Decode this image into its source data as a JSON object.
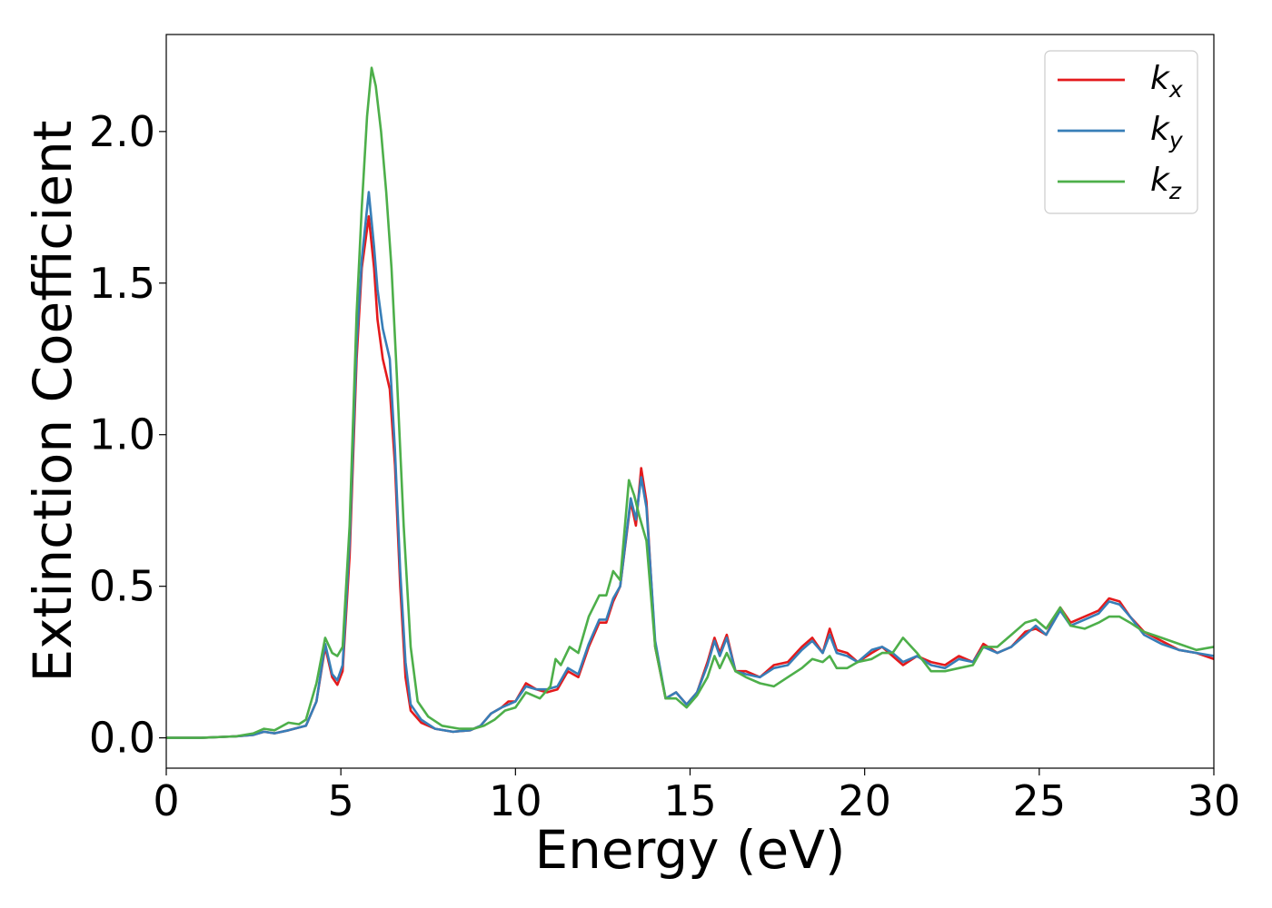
{
  "chart_data": {
    "type": "line",
    "title": "",
    "xlabel": "Energy (eV)",
    "ylabel": "Extinction Coefficient",
    "xlim": [
      0,
      30
    ],
    "ylim": [
      -0.1,
      2.32
    ],
    "xticks": [
      0,
      5,
      10,
      15,
      20,
      25,
      30
    ],
    "xtick_labels": [
      "0",
      "5",
      "10",
      "15",
      "20",
      "25",
      "30"
    ],
    "yticks": [
      0.0,
      0.5,
      1.0,
      1.5,
      2.0
    ],
    "ytick_labels": [
      "0.0",
      "0.5",
      "1.0",
      "1.5",
      "2.0"
    ],
    "grid": false,
    "legend_position": "top-right",
    "series": [
      {
        "name": "k_x",
        "label_main": "k",
        "label_sub": "x",
        "color": "#e41a1c",
        "points": [
          [
            0,
            0.0
          ],
          [
            1,
            0.0
          ],
          [
            2,
            0.005
          ],
          [
            2.5,
            0.01
          ],
          [
            2.8,
            0.02
          ],
          [
            3.1,
            0.015
          ],
          [
            3.5,
            0.025
          ],
          [
            4,
            0.04
          ],
          [
            4.3,
            0.12
          ],
          [
            4.55,
            0.3
          ],
          [
            4.75,
            0.2
          ],
          [
            4.9,
            0.175
          ],
          [
            5.05,
            0.22
          ],
          [
            5.25,
            0.6
          ],
          [
            5.45,
            1.25
          ],
          [
            5.6,
            1.55
          ],
          [
            5.8,
            1.72
          ],
          [
            5.95,
            1.55
          ],
          [
            6.05,
            1.38
          ],
          [
            6.2,
            1.25
          ],
          [
            6.4,
            1.15
          ],
          [
            6.55,
            0.9
          ],
          [
            6.7,
            0.5
          ],
          [
            6.85,
            0.2
          ],
          [
            7,
            0.09
          ],
          [
            7.3,
            0.05
          ],
          [
            7.7,
            0.03
          ],
          [
            8.2,
            0.02
          ],
          [
            8.7,
            0.025
          ],
          [
            9.0,
            0.04
          ],
          [
            9.3,
            0.08
          ],
          [
            9.6,
            0.1
          ],
          [
            9.8,
            0.12
          ],
          [
            10.0,
            0.12
          ],
          [
            10.3,
            0.18
          ],
          [
            10.6,
            0.16
          ],
          [
            10.9,
            0.15
          ],
          [
            11.2,
            0.16
          ],
          [
            11.5,
            0.22
          ],
          [
            11.8,
            0.2
          ],
          [
            12.1,
            0.3
          ],
          [
            12.4,
            0.38
          ],
          [
            12.6,
            0.38
          ],
          [
            12.8,
            0.45
          ],
          [
            13.0,
            0.5
          ],
          [
            13.3,
            0.78
          ],
          [
            13.45,
            0.7
          ],
          [
            13.6,
            0.89
          ],
          [
            13.75,
            0.78
          ],
          [
            14.0,
            0.3
          ],
          [
            14.3,
            0.13
          ],
          [
            14.6,
            0.15
          ],
          [
            14.9,
            0.11
          ],
          [
            15.2,
            0.15
          ],
          [
            15.5,
            0.25
          ],
          [
            15.7,
            0.33
          ],
          [
            15.85,
            0.28
          ],
          [
            16.05,
            0.34
          ],
          [
            16.3,
            0.22
          ],
          [
            16.6,
            0.22
          ],
          [
            17.0,
            0.2
          ],
          [
            17.4,
            0.24
          ],
          [
            17.8,
            0.25
          ],
          [
            18.2,
            0.3
          ],
          [
            18.5,
            0.33
          ],
          [
            18.8,
            0.28
          ],
          [
            19.0,
            0.36
          ],
          [
            19.2,
            0.29
          ],
          [
            19.5,
            0.28
          ],
          [
            19.8,
            0.25
          ],
          [
            20.2,
            0.28
          ],
          [
            20.5,
            0.3
          ],
          [
            20.8,
            0.27
          ],
          [
            21.1,
            0.24
          ],
          [
            21.5,
            0.27
          ],
          [
            21.9,
            0.25
          ],
          [
            22.3,
            0.24
          ],
          [
            22.7,
            0.27
          ],
          [
            23.1,
            0.25
          ],
          [
            23.4,
            0.31
          ],
          [
            23.8,
            0.28
          ],
          [
            24.2,
            0.3
          ],
          [
            24.6,
            0.35
          ],
          [
            24.9,
            0.36
          ],
          [
            25.2,
            0.34
          ],
          [
            25.6,
            0.43
          ],
          [
            25.9,
            0.38
          ],
          [
            26.3,
            0.4
          ],
          [
            26.7,
            0.42
          ],
          [
            27.0,
            0.46
          ],
          [
            27.3,
            0.45
          ],
          [
            27.6,
            0.4
          ],
          [
            28.0,
            0.35
          ],
          [
            28.5,
            0.32
          ],
          [
            29.0,
            0.29
          ],
          [
            29.5,
            0.28
          ],
          [
            30.0,
            0.26
          ]
        ]
      },
      {
        "name": "k_y",
        "label_main": "k",
        "label_sub": "y",
        "color": "#377eb8",
        "points": [
          [
            0,
            0.0
          ],
          [
            1,
            0.0
          ],
          [
            2,
            0.005
          ],
          [
            2.5,
            0.01
          ],
          [
            2.8,
            0.02
          ],
          [
            3.1,
            0.015
          ],
          [
            3.5,
            0.025
          ],
          [
            4,
            0.04
          ],
          [
            4.3,
            0.12
          ],
          [
            4.55,
            0.31
          ],
          [
            4.75,
            0.21
          ],
          [
            4.9,
            0.19
          ],
          [
            5.05,
            0.24
          ],
          [
            5.25,
            0.65
          ],
          [
            5.45,
            1.3
          ],
          [
            5.6,
            1.58
          ],
          [
            5.8,
            1.8
          ],
          [
            5.95,
            1.62
          ],
          [
            6.05,
            1.48
          ],
          [
            6.2,
            1.35
          ],
          [
            6.4,
            1.25
          ],
          [
            6.55,
            0.95
          ],
          [
            6.7,
            0.55
          ],
          [
            6.85,
            0.25
          ],
          [
            7,
            0.11
          ],
          [
            7.3,
            0.06
          ],
          [
            7.7,
            0.03
          ],
          [
            8.2,
            0.02
          ],
          [
            8.7,
            0.025
          ],
          [
            9.0,
            0.04
          ],
          [
            9.3,
            0.08
          ],
          [
            9.6,
            0.1
          ],
          [
            9.8,
            0.11
          ],
          [
            10.0,
            0.12
          ],
          [
            10.3,
            0.17
          ],
          [
            10.6,
            0.16
          ],
          [
            10.9,
            0.16
          ],
          [
            11.2,
            0.17
          ],
          [
            11.5,
            0.23
          ],
          [
            11.8,
            0.21
          ],
          [
            12.1,
            0.31
          ],
          [
            12.4,
            0.39
          ],
          [
            12.6,
            0.39
          ],
          [
            12.8,
            0.46
          ],
          [
            13.0,
            0.5
          ],
          [
            13.3,
            0.79
          ],
          [
            13.45,
            0.72
          ],
          [
            13.6,
            0.86
          ],
          [
            13.75,
            0.76
          ],
          [
            14.0,
            0.32
          ],
          [
            14.3,
            0.13
          ],
          [
            14.6,
            0.15
          ],
          [
            14.9,
            0.11
          ],
          [
            15.2,
            0.15
          ],
          [
            15.5,
            0.24
          ],
          [
            15.7,
            0.32
          ],
          [
            15.85,
            0.27
          ],
          [
            16.05,
            0.33
          ],
          [
            16.3,
            0.22
          ],
          [
            16.6,
            0.21
          ],
          [
            17.0,
            0.2
          ],
          [
            17.4,
            0.23
          ],
          [
            17.8,
            0.24
          ],
          [
            18.2,
            0.29
          ],
          [
            18.5,
            0.32
          ],
          [
            18.8,
            0.28
          ],
          [
            19.0,
            0.34
          ],
          [
            19.2,
            0.28
          ],
          [
            19.5,
            0.27
          ],
          [
            19.8,
            0.25
          ],
          [
            20.2,
            0.29
          ],
          [
            20.5,
            0.3
          ],
          [
            20.8,
            0.28
          ],
          [
            21.1,
            0.25
          ],
          [
            21.5,
            0.27
          ],
          [
            21.9,
            0.24
          ],
          [
            22.3,
            0.23
          ],
          [
            22.7,
            0.26
          ],
          [
            23.1,
            0.25
          ],
          [
            23.4,
            0.3
          ],
          [
            23.8,
            0.28
          ],
          [
            24.2,
            0.3
          ],
          [
            24.6,
            0.34
          ],
          [
            24.9,
            0.37
          ],
          [
            25.2,
            0.34
          ],
          [
            25.6,
            0.42
          ],
          [
            25.9,
            0.37
          ],
          [
            26.3,
            0.39
          ],
          [
            26.7,
            0.41
          ],
          [
            27.0,
            0.45
          ],
          [
            27.3,
            0.44
          ],
          [
            27.6,
            0.4
          ],
          [
            28.0,
            0.34
          ],
          [
            28.5,
            0.31
          ],
          [
            29.0,
            0.29
          ],
          [
            29.5,
            0.28
          ],
          [
            30.0,
            0.27
          ]
        ]
      },
      {
        "name": "k_z",
        "label_main": "k",
        "label_sub": "z",
        "color": "#4daf4a",
        "points": [
          [
            0,
            0.0
          ],
          [
            1,
            0.0
          ],
          [
            2,
            0.005
          ],
          [
            2.5,
            0.015
          ],
          [
            2.8,
            0.03
          ],
          [
            3.1,
            0.025
          ],
          [
            3.5,
            0.05
          ],
          [
            3.8,
            0.045
          ],
          [
            4,
            0.06
          ],
          [
            4.3,
            0.18
          ],
          [
            4.55,
            0.33
          ],
          [
            4.75,
            0.28
          ],
          [
            4.9,
            0.27
          ],
          [
            5.05,
            0.3
          ],
          [
            5.25,
            0.7
          ],
          [
            5.45,
            1.4
          ],
          [
            5.6,
            1.75
          ],
          [
            5.75,
            2.05
          ],
          [
            5.88,
            2.21
          ],
          [
            6.0,
            2.15
          ],
          [
            6.15,
            2.0
          ],
          [
            6.3,
            1.8
          ],
          [
            6.45,
            1.55
          ],
          [
            6.6,
            1.2
          ],
          [
            6.8,
            0.7
          ],
          [
            7.0,
            0.3
          ],
          [
            7.2,
            0.12
          ],
          [
            7.5,
            0.07
          ],
          [
            7.9,
            0.04
          ],
          [
            8.4,
            0.03
          ],
          [
            8.8,
            0.03
          ],
          [
            9.1,
            0.04
          ],
          [
            9.4,
            0.06
          ],
          [
            9.7,
            0.09
          ],
          [
            10.0,
            0.1
          ],
          [
            10.3,
            0.15
          ],
          [
            10.7,
            0.13
          ],
          [
            11.0,
            0.17
          ],
          [
            11.15,
            0.26
          ],
          [
            11.3,
            0.24
          ],
          [
            11.55,
            0.3
          ],
          [
            11.8,
            0.28
          ],
          [
            12.1,
            0.4
          ],
          [
            12.4,
            0.47
          ],
          [
            12.6,
            0.47
          ],
          [
            12.8,
            0.55
          ],
          [
            13.0,
            0.52
          ],
          [
            13.25,
            0.85
          ],
          [
            13.4,
            0.8
          ],
          [
            13.55,
            0.73
          ],
          [
            13.75,
            0.65
          ],
          [
            14.0,
            0.3
          ],
          [
            14.3,
            0.13
          ],
          [
            14.6,
            0.13
          ],
          [
            14.9,
            0.1
          ],
          [
            15.2,
            0.14
          ],
          [
            15.5,
            0.2
          ],
          [
            15.7,
            0.27
          ],
          [
            15.85,
            0.23
          ],
          [
            16.05,
            0.28
          ],
          [
            16.3,
            0.22
          ],
          [
            16.6,
            0.2
          ],
          [
            17.0,
            0.18
          ],
          [
            17.4,
            0.17
          ],
          [
            17.8,
            0.2
          ],
          [
            18.2,
            0.23
          ],
          [
            18.5,
            0.26
          ],
          [
            18.8,
            0.25
          ],
          [
            19.0,
            0.27
          ],
          [
            19.2,
            0.23
          ],
          [
            19.5,
            0.23
          ],
          [
            19.8,
            0.25
          ],
          [
            20.2,
            0.26
          ],
          [
            20.5,
            0.28
          ],
          [
            20.8,
            0.28
          ],
          [
            21.1,
            0.33
          ],
          [
            21.5,
            0.28
          ],
          [
            21.9,
            0.22
          ],
          [
            22.3,
            0.22
          ],
          [
            22.7,
            0.23
          ],
          [
            23.1,
            0.24
          ],
          [
            23.4,
            0.3
          ],
          [
            23.8,
            0.3
          ],
          [
            24.2,
            0.34
          ],
          [
            24.6,
            0.38
          ],
          [
            24.9,
            0.39
          ],
          [
            25.2,
            0.36
          ],
          [
            25.6,
            0.43
          ],
          [
            25.9,
            0.37
          ],
          [
            26.3,
            0.36
          ],
          [
            26.7,
            0.38
          ],
          [
            27.0,
            0.4
          ],
          [
            27.3,
            0.4
          ],
          [
            27.6,
            0.38
          ],
          [
            28.0,
            0.35
          ],
          [
            28.5,
            0.33
          ],
          [
            29.0,
            0.31
          ],
          [
            29.5,
            0.29
          ],
          [
            30.0,
            0.3
          ]
        ]
      }
    ]
  }
}
